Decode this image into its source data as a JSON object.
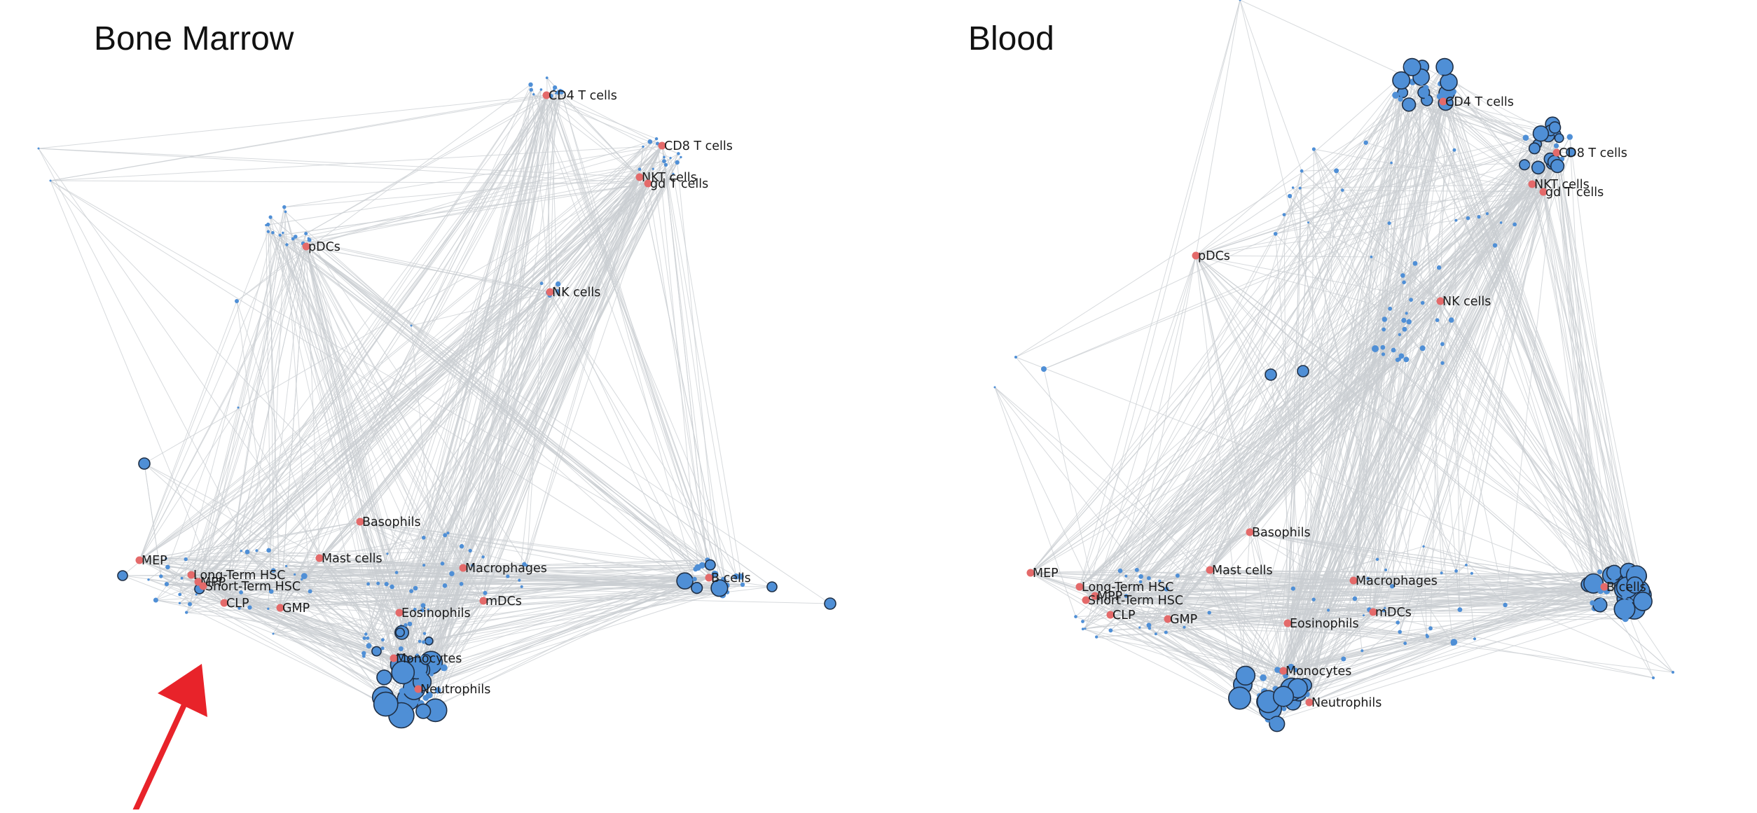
{
  "panels": {
    "bone_marrow": {
      "title": "Bone Marrow",
      "labels": [
        "CD4 T cells",
        "CD8 T cells",
        "NKT cells",
        "gd T cells",
        "pDCs",
        "NK cells",
        "Basophils",
        "MEP",
        "Mast cells",
        "Long-Term HSC",
        "MPP",
        "Short-Term HSC",
        "CLP",
        "GMP",
        "Macrophages",
        "B cells",
        "Eosinophils",
        "mDCs",
        "Monocytes",
        "Neutrophils"
      ]
    },
    "blood": {
      "title": "Blood",
      "labels": [
        "CD4 T cells",
        "CD8 T cells",
        "NKT cells",
        "gd T cells",
        "pDCs",
        "NK cells",
        "Basophils",
        "MEP",
        "Mast cells",
        "Macrophages",
        "Long-Term HSC",
        "MPP",
        "Short-Term HSC",
        "B cells",
        "CLP",
        "GMP",
        "mDCs",
        "Eosinophils",
        "Monocytes",
        "Neutrophils"
      ]
    }
  },
  "colors": {
    "node_fill": "#4f8fd6",
    "node_stroke": "#1f2f45",
    "label_node": "#e46a6a",
    "edge": "#c9cdd2",
    "arrow": "#e8232a"
  }
}
